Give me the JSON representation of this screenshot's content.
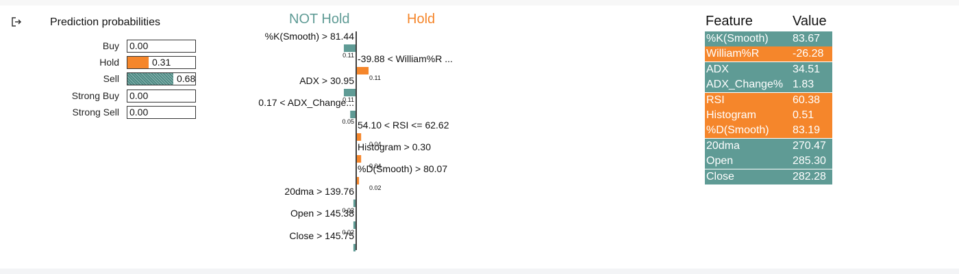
{
  "colors": {
    "not_hold": "#5f9b95",
    "hold": "#f5862b"
  },
  "icons": {
    "exit": "exit-arrow-icon"
  },
  "prediction": {
    "title": "Prediction probabilities",
    "items": [
      {
        "label": "Buy",
        "value": 0.0,
        "value_text": "0.00"
      },
      {
        "label": "Hold",
        "value": 0.31,
        "value_text": "0.31"
      },
      {
        "label": "Sell",
        "value": 0.68,
        "value_text": "0.68"
      },
      {
        "label": "Strong Buy",
        "value": 0.0,
        "value_text": "0.00"
      },
      {
        "label": "Strong Sell",
        "value": 0.0,
        "value_text": "0.00"
      }
    ]
  },
  "chart_data": {
    "type": "bar",
    "orientation": "horizontal",
    "class_left": "NOT Hold",
    "class_right": "Hold",
    "bars": [
      {
        "label": "%K(Smooth) > 81.44",
        "value": -0.11,
        "value_text": "0.11"
      },
      {
        "label": "-39.88 < William%R ...",
        "value": 0.11,
        "value_text": "0.11"
      },
      {
        "label": "ADX > 30.95",
        "value": -0.11,
        "value_text": "0.11"
      },
      {
        "label": "0.17 < ADX_Change...",
        "value": -0.05,
        "value_text": "0.05"
      },
      {
        "label": "54.10 < RSI <= 62.62",
        "value": 0.04,
        "value_text": "0.04"
      },
      {
        "label": "Histogram > 0.30",
        "value": 0.04,
        "value_text": "0.04"
      },
      {
        "label": "%D(Smooth) > 80.07",
        "value": 0.02,
        "value_text": "0.02"
      },
      {
        "label": "20dma > 139.76",
        "value": -0.02,
        "value_text": "0.02"
      },
      {
        "label": "Open > 145.38",
        "value": -0.02,
        "value_text": "0.02"
      },
      {
        "label": "Close > 145.75",
        "value": -0.02,
        "value_text": "0.02"
      }
    ]
  },
  "feature_table": {
    "headers": [
      "Feature",
      "Value"
    ],
    "rows": [
      {
        "feature": "%K(Smooth)",
        "value": "83.67",
        "class": "not_hold"
      },
      {
        "feature": "William%R",
        "value": "-26.28",
        "class": "hold"
      },
      {
        "feature": "ADX",
        "value": "34.51",
        "class": "not_hold"
      },
      {
        "feature": "ADX_Change%",
        "value": "1.83",
        "class": "not_hold"
      },
      {
        "feature": "RSI",
        "value": "60.38",
        "class": "hold"
      },
      {
        "feature": "Histogram",
        "value": "0.51",
        "class": "hold"
      },
      {
        "feature": "%D(Smooth)",
        "value": "83.19",
        "class": "hold"
      },
      {
        "feature": "20dma",
        "value": "270.47",
        "class": "not_hold"
      },
      {
        "feature": "Open",
        "value": "285.30",
        "class": "not_hold"
      },
      {
        "feature": "Close",
        "value": "282.28",
        "class": "not_hold"
      }
    ]
  }
}
